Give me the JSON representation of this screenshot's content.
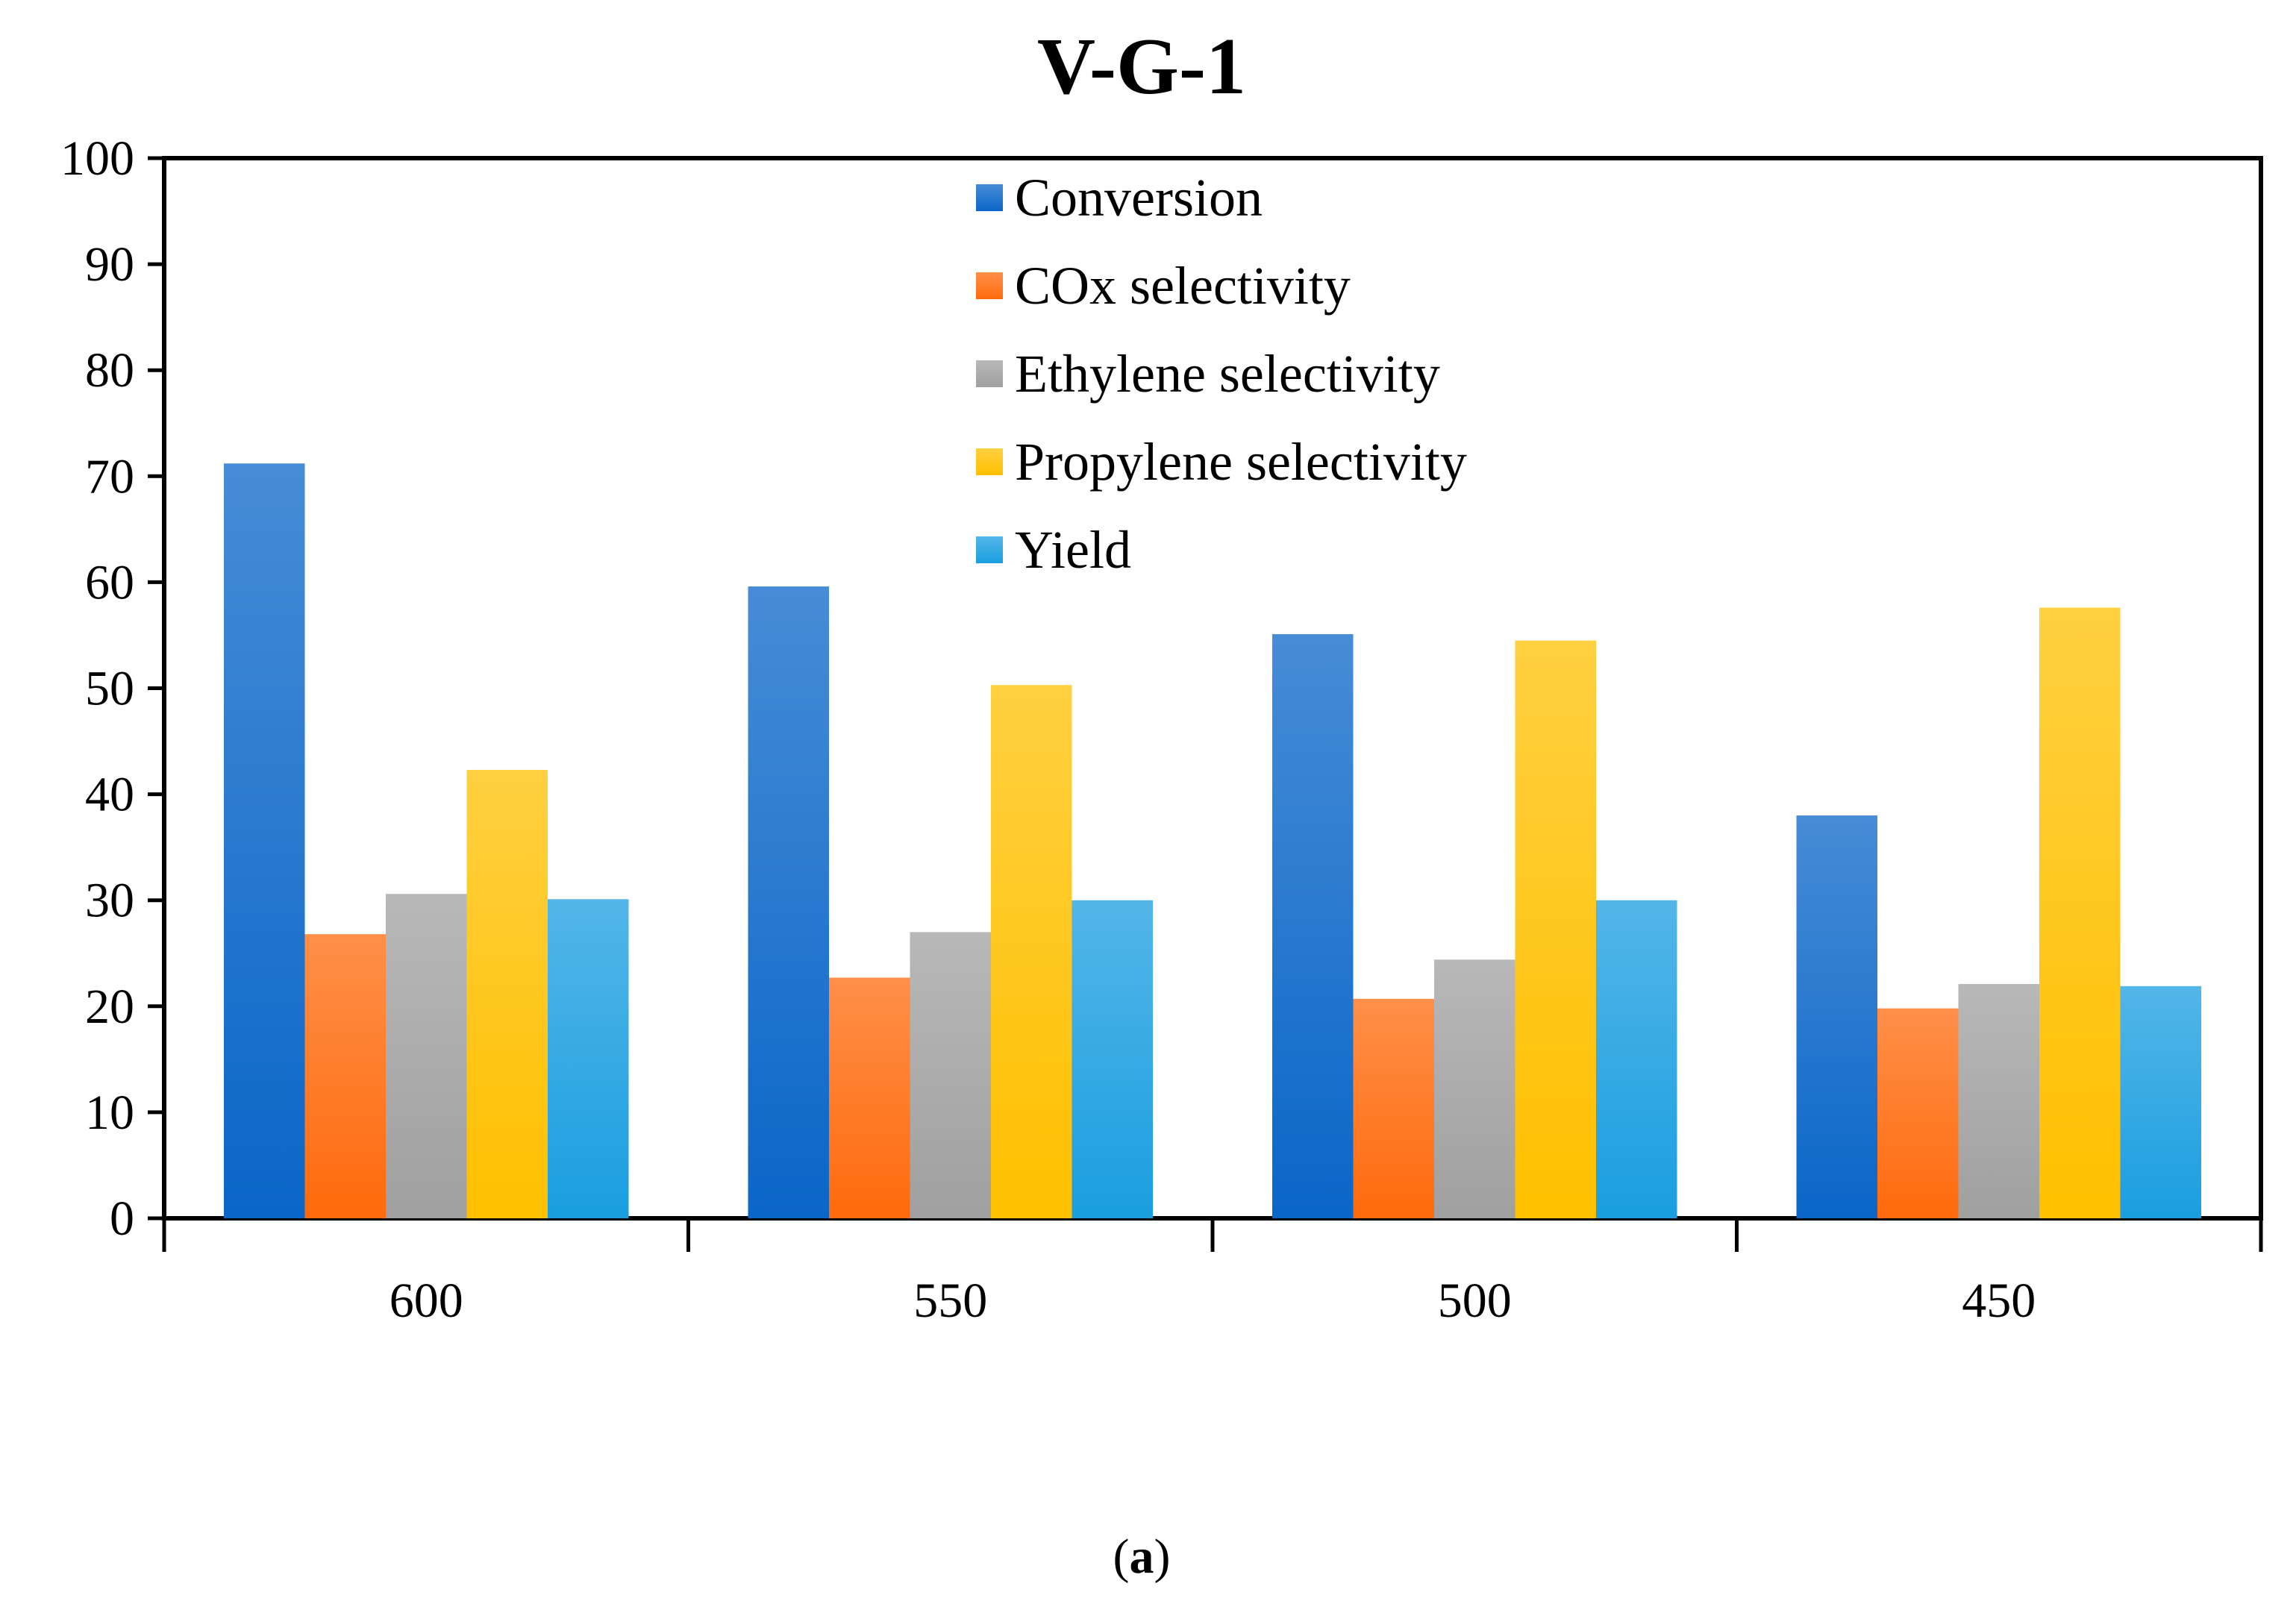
{
  "chart_data": {
    "type": "bar",
    "title": "V-G-1",
    "caption": {
      "open": "(",
      "label": "a",
      "close": ")"
    },
    "xlabel": "",
    "ylabel": "",
    "categories": [
      "600",
      "550",
      "500",
      "450"
    ],
    "ylim": [
      0,
      100
    ],
    "yticks": [
      "0",
      "10",
      "20",
      "30",
      "40",
      "50",
      "60",
      "70",
      "80",
      "90",
      "100"
    ],
    "grid": false,
    "legend_position": "top-center",
    "series": [
      {
        "name": "Conversion",
        "color": "#0a66c8",
        "values": [
          71.2,
          59.6,
          55.1,
          38.0
        ]
      },
      {
        "name": "COx selectivity",
        "color": "#ff6a0c",
        "values": [
          26.8,
          22.7,
          20.7,
          19.8
        ]
      },
      {
        "name": "Ethylene selectivity",
        "color": "#a0a0a0",
        "values": [
          30.6,
          27.0,
          24.4,
          22.1
        ]
      },
      {
        "name": "Propylene selectivity",
        "color": "#ffc000",
        "values": [
          42.3,
          50.3,
          54.5,
          57.6
        ]
      },
      {
        "name": "Yield",
        "color": "#1a9ee0",
        "values": [
          30.1,
          30.0,
          30.0,
          21.9
        ]
      }
    ]
  }
}
